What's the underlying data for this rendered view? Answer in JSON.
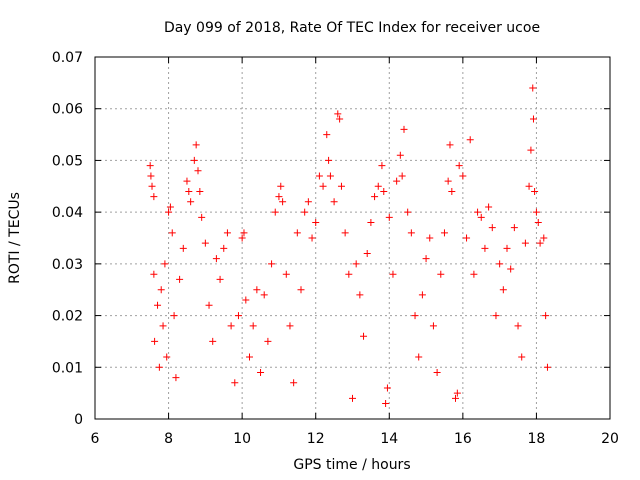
{
  "chart_data": {
    "type": "scatter",
    "title": "Day 099 of 2018, Rate Of TEC Index for receiver ucoe",
    "xlabel": "GPS time / hours",
    "ylabel": "ROTI / TECUs",
    "xlim": [
      6,
      20
    ],
    "ylim": [
      0,
      0.07
    ],
    "x_ticks": [
      "6",
      "8",
      "10",
      "12",
      "14",
      "16",
      "18",
      "20"
    ],
    "y_ticks": [
      "0",
      "0.01",
      "0.02",
      "0.03",
      "0.04",
      "0.05",
      "0.06",
      "0.07"
    ],
    "grid": true,
    "marker": "+",
    "color": "#ff0000",
    "series": [
      {
        "values": [
          [
            7.5,
            0.049
          ],
          [
            7.52,
            0.047
          ],
          [
            7.55,
            0.045
          ],
          [
            7.6,
            0.043
          ],
          [
            7.6,
            0.028
          ],
          [
            7.62,
            0.015
          ],
          [
            7.7,
            0.022
          ],
          [
            7.75,
            0.01
          ],
          [
            7.8,
            0.025
          ],
          [
            7.85,
            0.018
          ],
          [
            7.9,
            0.03
          ],
          [
            7.95,
            0.012
          ],
          [
            8.0,
            0.04
          ],
          [
            8.05,
            0.041
          ],
          [
            8.1,
            0.036
          ],
          [
            8.15,
            0.02
          ],
          [
            8.2,
            0.008
          ],
          [
            8.3,
            0.027
          ],
          [
            8.4,
            0.033
          ],
          [
            8.5,
            0.046
          ],
          [
            8.55,
            0.044
          ],
          [
            8.6,
            0.042
          ],
          [
            8.7,
            0.05
          ],
          [
            8.75,
            0.053
          ],
          [
            8.8,
            0.048
          ],
          [
            8.85,
            0.044
          ],
          [
            8.9,
            0.039
          ],
          [
            9.0,
            0.034
          ],
          [
            9.1,
            0.022
          ],
          [
            9.2,
            0.015
          ],
          [
            9.3,
            0.031
          ],
          [
            9.4,
            0.027
          ],
          [
            9.5,
            0.033
          ],
          [
            9.6,
            0.036
          ],
          [
            9.7,
            0.018
          ],
          [
            9.8,
            0.007
          ],
          [
            9.9,
            0.02
          ],
          [
            10.0,
            0.035
          ],
          [
            10.05,
            0.036
          ],
          [
            10.1,
            0.023
          ],
          [
            10.2,
            0.012
          ],
          [
            10.3,
            0.018
          ],
          [
            10.4,
            0.025
          ],
          [
            10.5,
            0.009
          ],
          [
            10.6,
            0.024
          ],
          [
            10.7,
            0.015
          ],
          [
            10.8,
            0.03
          ],
          [
            10.9,
            0.04
          ],
          [
            11.0,
            0.043
          ],
          [
            11.05,
            0.045
          ],
          [
            11.1,
            0.042
          ],
          [
            11.2,
            0.028
          ],
          [
            11.3,
            0.018
          ],
          [
            11.4,
            0.007
          ],
          [
            11.5,
            0.036
          ],
          [
            11.6,
            0.025
          ],
          [
            11.7,
            0.04
          ],
          [
            11.8,
            0.042
          ],
          [
            11.9,
            0.035
          ],
          [
            12.0,
            0.038
          ],
          [
            12.1,
            0.047
          ],
          [
            12.2,
            0.045
          ],
          [
            12.3,
            0.055
          ],
          [
            12.35,
            0.05
          ],
          [
            12.4,
            0.047
          ],
          [
            12.5,
            0.042
          ],
          [
            12.6,
            0.059
          ],
          [
            12.65,
            0.058
          ],
          [
            12.7,
            0.045
          ],
          [
            12.8,
            0.036
          ],
          [
            12.9,
            0.028
          ],
          [
            13.0,
            0.004
          ],
          [
            13.1,
            0.03
          ],
          [
            13.2,
            0.024
          ],
          [
            13.3,
            0.016
          ],
          [
            13.4,
            0.032
          ],
          [
            13.5,
            0.038
          ],
          [
            13.6,
            0.043
          ],
          [
            13.7,
            0.045
          ],
          [
            13.8,
            0.049
          ],
          [
            13.85,
            0.044
          ],
          [
            13.9,
            0.003
          ],
          [
            13.95,
            0.006
          ],
          [
            14.0,
            0.039
          ],
          [
            14.1,
            0.028
          ],
          [
            14.2,
            0.046
          ],
          [
            14.3,
            0.051
          ],
          [
            14.35,
            0.047
          ],
          [
            14.4,
            0.056
          ],
          [
            14.5,
            0.04
          ],
          [
            14.6,
            0.036
          ],
          [
            14.7,
            0.02
          ],
          [
            14.8,
            0.012
          ],
          [
            14.9,
            0.024
          ],
          [
            15.0,
            0.031
          ],
          [
            15.1,
            0.035
          ],
          [
            15.2,
            0.018
          ],
          [
            15.3,
            0.009
          ],
          [
            15.4,
            0.028
          ],
          [
            15.5,
            0.036
          ],
          [
            15.6,
            0.046
          ],
          [
            15.65,
            0.053
          ],
          [
            15.7,
            0.044
          ],
          [
            15.8,
            0.004
          ],
          [
            15.85,
            0.005
          ],
          [
            15.9,
            0.049
          ],
          [
            16.0,
            0.047
          ],
          [
            16.1,
            0.035
          ],
          [
            16.2,
            0.054
          ],
          [
            16.3,
            0.028
          ],
          [
            16.4,
            0.04
          ],
          [
            16.5,
            0.039
          ],
          [
            16.6,
            0.033
          ],
          [
            16.7,
            0.041
          ],
          [
            16.8,
            0.037
          ],
          [
            16.9,
            0.02
          ],
          [
            17.0,
            0.03
          ],
          [
            17.1,
            0.025
          ],
          [
            17.2,
            0.033
          ],
          [
            17.3,
            0.029
          ],
          [
            17.4,
            0.037
          ],
          [
            17.5,
            0.018
          ],
          [
            17.6,
            0.012
          ],
          [
            17.7,
            0.034
          ],
          [
            17.8,
            0.045
          ],
          [
            17.85,
            0.052
          ],
          [
            17.9,
            0.064
          ],
          [
            17.92,
            0.058
          ],
          [
            17.95,
            0.044
          ],
          [
            18.0,
            0.04
          ],
          [
            18.05,
            0.038
          ],
          [
            18.1,
            0.034
          ],
          [
            18.2,
            0.035
          ],
          [
            18.25,
            0.02
          ],
          [
            18.3,
            0.01
          ]
        ]
      }
    ]
  }
}
